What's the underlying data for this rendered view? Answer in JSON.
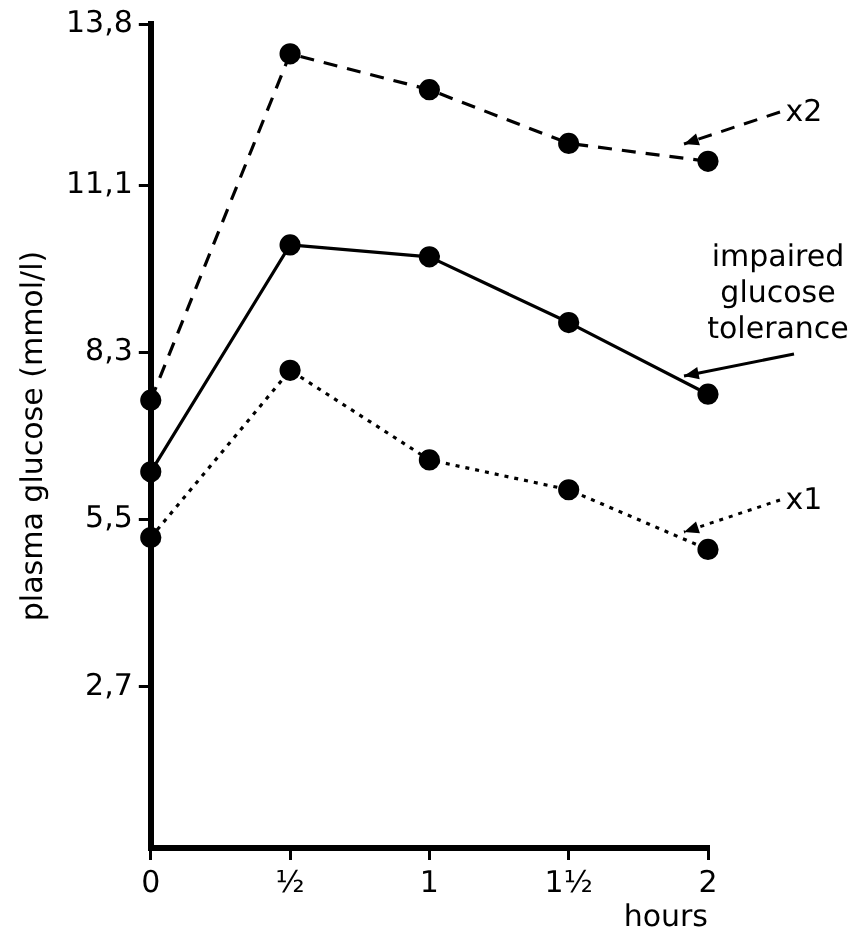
{
  "chart_data": {
    "type": "line",
    "ylabel": "plasma glucose (mmol/l)",
    "xlabel": "hours",
    "x": [
      0,
      0.5,
      1,
      1.5,
      2
    ],
    "xlim": [
      0,
      2
    ],
    "xticks": [
      0,
      {
        "value": 0.5,
        "label": "½"
      },
      1,
      {
        "value": 1.5,
        "label": "1½"
      },
      2
    ],
    "ylim": [
      0,
      13.8
    ],
    "yticks": [
      {
        "value": 2.7,
        "label": "2,7"
      },
      {
        "value": 5.5,
        "label": "5,5"
      },
      {
        "value": 8.3,
        "label": "8,3"
      },
      {
        "value": 11.1,
        "label": "11,1"
      },
      {
        "value": 13.8,
        "label": "13,8"
      }
    ],
    "grid": false,
    "legend": "right",
    "marker": "circle",
    "series": [
      {
        "name": "x2",
        "color": "#000000",
        "line_style": "dashed",
        "values": [
          7.5,
          13.3,
          12.7,
          11.8,
          11.5
        ]
      },
      {
        "name": "impaired glucose tolerance",
        "color": "#000000",
        "line_style": "solid",
        "values": [
          6.3,
          10.1,
          9.9,
          8.8,
          7.6
        ]
      },
      {
        "name": "x1",
        "color": "#000000",
        "line_style": "dotted",
        "values": [
          5.2,
          8.0,
          6.5,
          6.0,
          5.0
        ]
      }
    ]
  }
}
